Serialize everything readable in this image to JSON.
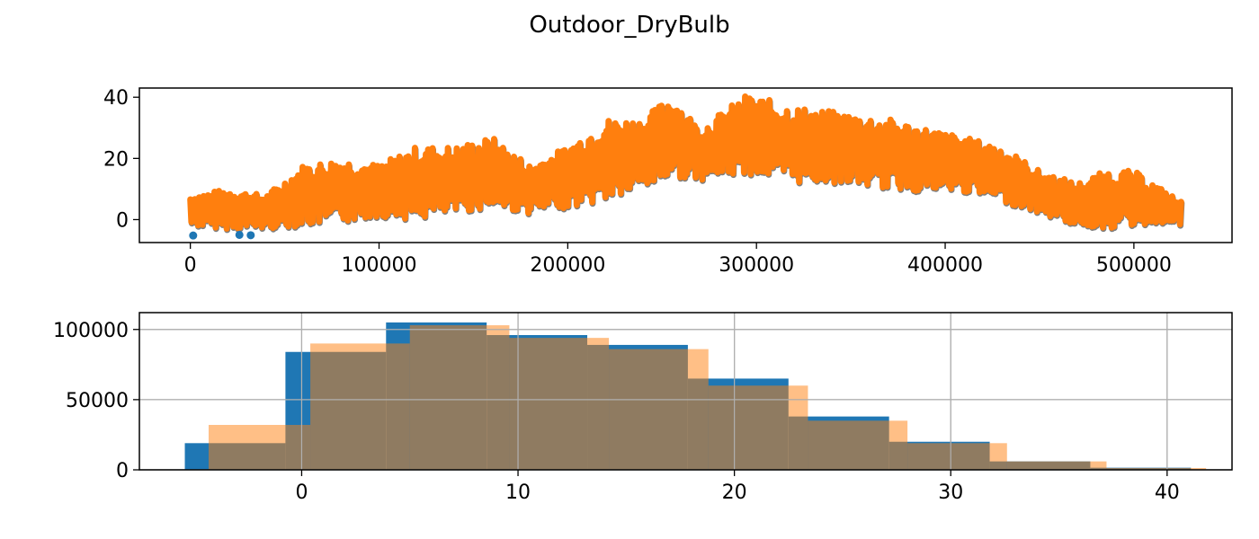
{
  "figure_title": "Outdoor_DryBulb",
  "colors": {
    "blue": "#1f77b4",
    "orange": "#ff7f0e",
    "orange_alpha_fill": "#ffbb80",
    "overlap": "#8f7c63",
    "grid": "#b0b0b0"
  },
  "chart_data": [
    {
      "type": "scatter",
      "title": "",
      "xlabel": "",
      "ylabel": "",
      "xlim": [
        -27000,
        552000
      ],
      "ylim": [
        -7.5,
        43
      ],
      "xticks": [
        0,
        100000,
        200000,
        300000,
        400000,
        500000
      ],
      "xtick_labels": [
        "0",
        "100000",
        "200000",
        "300000",
        "400000",
        "500000"
      ],
      "yticks": [
        0,
        20,
        40
      ],
      "ytick_labels": [
        "0",
        "20",
        "40"
      ],
      "grid": false,
      "series": [
        {
          "color": "#1f77b4",
          "marker": "dot",
          "note_points": [
            [
              1500,
              -5.2
            ],
            [
              26000,
              -5.0
            ],
            [
              32000,
              -5.1
            ]
          ]
        },
        {
          "color": "#7f7f7f",
          "marker": "dot"
        },
        {
          "color": "#ff7f0e",
          "marker": "dot"
        }
      ],
      "envelope": {
        "x": [
          0,
          20000,
          40000,
          60000,
          80000,
          100000,
          120000,
          140000,
          160000,
          180000,
          200000,
          220000,
          240000,
          255000,
          270000,
          295000,
          320000,
          345000,
          370000,
          390000,
          410000,
          430000,
          450000,
          470000,
          485000,
          500000,
          515000,
          525000
        ],
        "low": [
          -2,
          -3,
          -3,
          -2,
          -1,
          1,
          0,
          2,
          4,
          2,
          4,
          6,
          10,
          14,
          13,
          15,
          12,
          12,
          10,
          9,
          9,
          6,
          2,
          -2,
          -3,
          -2,
          -1,
          -2
        ],
        "high": [
          8,
          10,
          8,
          18,
          20,
          18,
          24,
          24,
          27,
          18,
          24,
          33,
          33,
          41,
          30,
          41,
          37,
          35,
          33,
          30,
          27,
          24,
          16,
          12,
          16,
          16,
          10,
          6
        ]
      }
    },
    {
      "type": "histogram",
      "title": "",
      "xlabel": "",
      "ylabel": "",
      "xlim": [
        -7.5,
        43
      ],
      "ylim": [
        0,
        112000
      ],
      "xticks": [
        0,
        10,
        20,
        30,
        40
      ],
      "xtick_labels": [
        "0",
        "10",
        "20",
        "30",
        "40"
      ],
      "yticks": [
        0,
        50000,
        100000
      ],
      "ytick_labels": [
        "0",
        "50000",
        "100000"
      ],
      "grid": true,
      "series": [
        {
          "color": "#1f77b4",
          "alpha": 1.0,
          "bin_edges": [
            -5.4,
            -0.75,
            3.9,
            8.55,
            13.2,
            17.85,
            22.5,
            27.15,
            31.8,
            36.45,
            41.1
          ],
          "counts": [
            19000,
            84000,
            105000,
            96000,
            89000,
            65000,
            38000,
            20000,
            6000,
            1500
          ]
        },
        {
          "color": "#ff7f0e",
          "alpha": 0.5,
          "bin_edges": [
            -4.3,
            0.4,
            5.0,
            9.6,
            14.2,
            18.8,
            23.4,
            28.0,
            32.6,
            37.2,
            41.8
          ],
          "counts": [
            32000,
            90000,
            103000,
            94000,
            86000,
            60000,
            35000,
            19000,
            6000,
            1300
          ]
        }
      ]
    }
  ]
}
